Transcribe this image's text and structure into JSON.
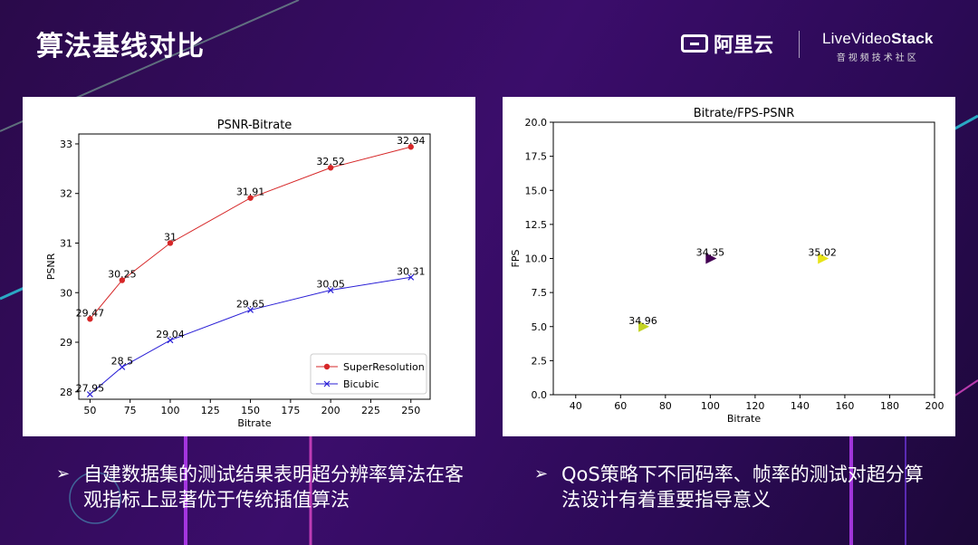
{
  "slide": {
    "title": "算法基线对比",
    "brand_aliyun": "阿里云",
    "brand_lvs_prefix": "LiveVideo",
    "brand_lvs_bold": "Stack",
    "brand_lvs_sub": "音视频技术社区",
    "bullet_left": "自建数据集的测试结果表明超分辨率算法在客观指标上显著优于传统插值算法",
    "bullet_right": "QoS策略下不同码率、帧率的测试对超分算法设计有着重要指导意义",
    "bullet_symbol": "➢"
  },
  "chart_data": [
    {
      "type": "line",
      "title": "PSNR-Bitrate",
      "xlabel": "Bitrate",
      "ylabel": "PSNR",
      "xlim": [
        43,
        262
      ],
      "ylim": [
        27.85,
        33.2
      ],
      "xticks": [
        50,
        75,
        100,
        125,
        150,
        175,
        200,
        225,
        250
      ],
      "yticks": [
        28,
        29,
        30,
        31,
        32,
        33
      ],
      "legend_position": "lower right",
      "grid": false,
      "series": [
        {
          "name": "SuperResolution",
          "color": "#d62728",
          "marker": "circle",
          "x": [
            50,
            70,
            100,
            150,
            200,
            250
          ],
          "y": [
            29.47,
            30.25,
            31,
            31.91,
            32.52,
            32.94
          ],
          "labels": [
            "29.47",
            "30.25",
            "31",
            "31.91",
            "32.52",
            "32.94"
          ]
        },
        {
          "name": "Bicubic",
          "color": "#2a1fd6",
          "marker": "x",
          "x": [
            50,
            70,
            100,
            150,
            200,
            250
          ],
          "y": [
            27.95,
            28.5,
            29.04,
            29.65,
            30.05,
            30.31
          ],
          "labels": [
            "27.95",
            "28.5",
            "29.04",
            "29.65",
            "30.05",
            "30.31"
          ]
        }
      ]
    },
    {
      "type": "scatter",
      "title": "Bitrate/FPS-PSNR",
      "xlabel": "Bitrate",
      "ylabel": "FPS",
      "xlim": [
        30,
        200
      ],
      "ylim": [
        0,
        20
      ],
      "xticks": [
        40,
        60,
        80,
        100,
        120,
        140,
        160,
        180,
        200
      ],
      "yticks": [
        0.0,
        2.5,
        5.0,
        7.5,
        10.0,
        12.5,
        15.0,
        17.5,
        20.0
      ],
      "ytick_labels": [
        "0.0",
        "2.5",
        "5.0",
        "7.5",
        "10.0",
        "12.5",
        "15.0",
        "17.5",
        "20.0"
      ],
      "grid": false,
      "marker": "triangle-right",
      "points": [
        {
          "x": 70,
          "y": 5,
          "label": "34.96",
          "color": "#c3d322"
        },
        {
          "x": 100,
          "y": 10,
          "label": "34.35",
          "color": "#440154"
        },
        {
          "x": 150,
          "y": 10,
          "label": "35.02",
          "color": "#e8e419"
        }
      ]
    }
  ]
}
